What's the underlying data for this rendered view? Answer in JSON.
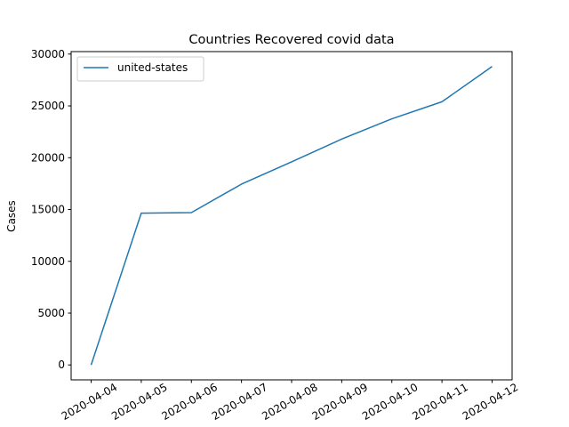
{
  "chart_data": {
    "type": "line",
    "title": "Countries Recovered covid data",
    "xlabel": "",
    "ylabel": "Cases",
    "x": [
      "2020-04-04",
      "2020-04-05",
      "2020-04-06",
      "2020-04-07",
      "2020-04-08",
      "2020-04-09",
      "2020-04-10",
      "2020-04-11",
      "2020-04-12"
    ],
    "series": [
      {
        "name": "united-states",
        "color": "#1f77b4",
        "values": [
          0,
          14650,
          14700,
          17450,
          19600,
          21800,
          23750,
          25400,
          28800
        ]
      }
    ],
    "ylim": [
      -1440,
      30240
    ],
    "yticks": [
      0,
      5000,
      10000,
      15000,
      20000,
      25000,
      30000
    ],
    "grid": false,
    "legend": "top-left"
  }
}
